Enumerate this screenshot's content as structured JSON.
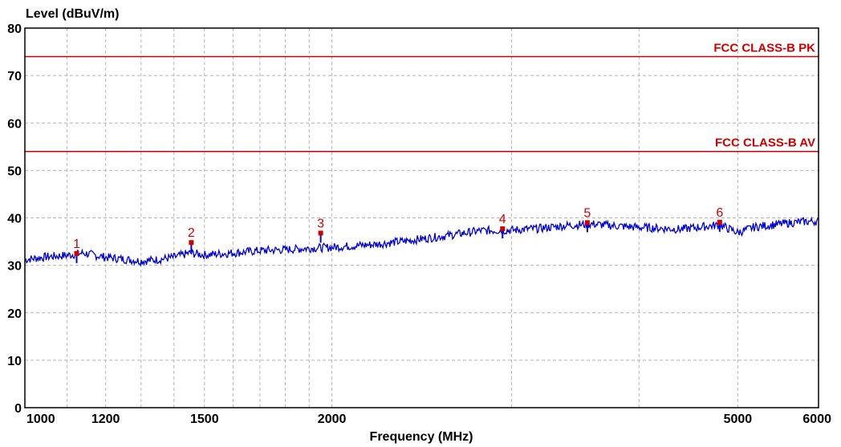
{
  "chart_data": {
    "type": "line",
    "title": "",
    "ylabel": "Level (dBuV/m)",
    "xlabel": "Frequency (MHz)",
    "x_scale": "log",
    "xlim": [
      1000,
      6000
    ],
    "ylim": [
      0,
      80
    ],
    "y_ticks": [
      0,
      10,
      20,
      30,
      40,
      50,
      60,
      70,
      80
    ],
    "x_tick_labels": [
      "1000",
      "1200",
      "1500",
      "2000",
      "5000",
      "6000"
    ],
    "x_tick_values": [
      1000,
      1200,
      1500,
      2000,
      5000,
      6000
    ],
    "x_gridlines": [
      1000,
      1100,
      1200,
      1300,
      1400,
      1500,
      1600,
      1700,
      1800,
      1900,
      2000,
      3000,
      4000,
      5000,
      6000
    ],
    "grid": true,
    "limit_lines": [
      {
        "name": "FCC CLASS-B PK",
        "value": 74,
        "color": "#cc0000"
      },
      {
        "name": "FCC CLASS-B AV",
        "value": 54,
        "color": "#cc0000"
      }
    ],
    "series": [
      {
        "color": "#0000cc",
        "points": [
          [
            1000,
            31.2
          ],
          [
            1050,
            31.8
          ],
          [
            1100,
            32.1
          ],
          [
            1140,
            32.6
          ],
          [
            1200,
            31.7
          ],
          [
            1250,
            31.3
          ],
          [
            1300,
            30.9
          ],
          [
            1350,
            31.2
          ],
          [
            1400,
            31.7
          ],
          [
            1450,
            32.6
          ],
          [
            1500,
            32.2
          ],
          [
            1600,
            32.6
          ],
          [
            1700,
            33.1
          ],
          [
            1800,
            33.3
          ],
          [
            1900,
            33.6
          ],
          [
            2000,
            33.8
          ],
          [
            2200,
            34.4
          ],
          [
            2400,
            35.3
          ],
          [
            2600,
            36.3
          ],
          [
            2800,
            37.3
          ],
          [
            3000,
            37.4
          ],
          [
            3200,
            37.8
          ],
          [
            3400,
            38.4
          ],
          [
            3600,
            38.7
          ],
          [
            3800,
            38.3
          ],
          [
            4000,
            38.0
          ],
          [
            4200,
            37.8
          ],
          [
            4400,
            37.6
          ],
          [
            4600,
            38.1
          ],
          [
            4800,
            38.5
          ],
          [
            5000,
            36.9
          ],
          [
            5200,
            38.1
          ],
          [
            5400,
            38.5
          ],
          [
            5600,
            38.9
          ],
          [
            5800,
            39.2
          ],
          [
            6000,
            39.3
          ]
        ]
      }
    ],
    "markers": [
      {
        "label": "1",
        "x": 1124,
        "y": 32.5
      },
      {
        "label": "2",
        "x": 1456,
        "y": 34.8
      },
      {
        "label": "3",
        "x": 1950,
        "y": 36.8
      },
      {
        "label": "4",
        "x": 2940,
        "y": 37.7
      },
      {
        "label": "5",
        "x": 3560,
        "y": 39.0
      },
      {
        "label": "6",
        "x": 4800,
        "y": 39.1
      }
    ]
  }
}
